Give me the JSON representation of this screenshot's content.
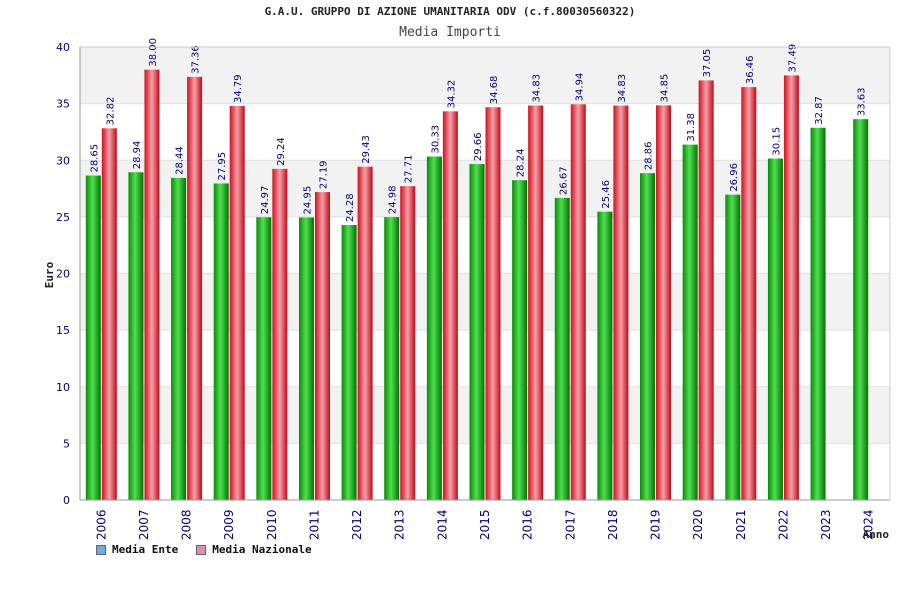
{
  "chart_data": {
    "type": "bar",
    "title": "G.A.U. GRUPPO DI AZIONE UMANITARIA ODV (c.f.80030560322)",
    "subtitle": "Media Importi",
    "ylabel": "Euro",
    "xlabel": "Anno",
    "ylim": [
      0,
      40
    ],
    "yticks": [
      0,
      5,
      10,
      15,
      20,
      25,
      30,
      35,
      40
    ],
    "grid": true,
    "legend_position": "bottom-left",
    "categories": [
      "2006",
      "2007",
      "2008",
      "2009",
      "2010",
      "2011",
      "2012",
      "2013",
      "2014",
      "2015",
      "2016",
      "2017",
      "2018",
      "2019",
      "2020",
      "2021",
      "2022",
      "2023",
      "2024"
    ],
    "series": [
      {
        "name": "Media Ente",
        "color": "#0aa80a",
        "values": [
          28.65,
          28.94,
          28.44,
          27.95,
          24.97,
          24.95,
          24.28,
          24.98,
          30.33,
          29.66,
          28.24,
          26.67,
          25.46,
          28.86,
          31.38,
          26.96,
          30.15,
          32.87,
          33.63
        ],
        "labels": [
          "28.65",
          "28.94",
          "28.44",
          "27.95",
          "24.97",
          "24.95",
          "24.28",
          "24.98",
          "30.33",
          "29.66",
          "28.24",
          "26.67",
          "25.46",
          "28.86",
          "31.38",
          "26.96",
          "30.15",
          "32.87",
          "33.63"
        ]
      },
      {
        "name": "Media Nazionale",
        "color": "#e01828",
        "values": [
          32.82,
          38.0,
          37.36,
          34.79,
          29.24,
          27.19,
          29.43,
          27.71,
          34.32,
          34.68,
          34.83,
          34.94,
          34.83,
          34.85,
          37.05,
          36.46,
          37.49,
          null,
          null
        ],
        "labels": [
          "32.82",
          "38.00",
          "37.36",
          "34.79",
          "29.24",
          "27.19",
          "29.43",
          "27.71",
          "34.32",
          "34.68",
          "34.83",
          "34.94",
          "34.83",
          "34.85",
          "37.05",
          "36.46",
          "37.49",
          null,
          null
        ]
      }
    ]
  },
  "legend": [
    {
      "label": "Media Ente",
      "color": "#6fa8e8"
    },
    {
      "label": "Media Nazionale",
      "color": "#e88ab0"
    }
  ]
}
